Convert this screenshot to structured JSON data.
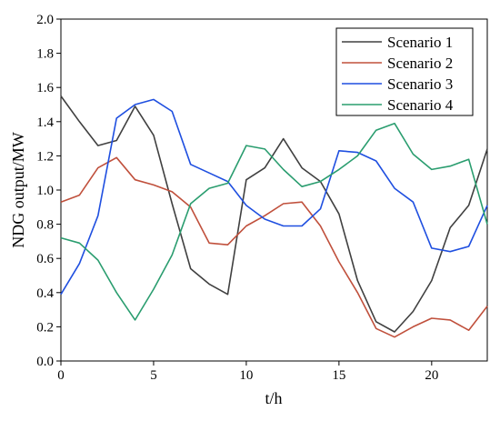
{
  "chart_data": {
    "type": "line",
    "title": "",
    "xlabel": "t/h",
    "ylabel": "NDG output/MW",
    "xlim": [
      0,
      23
    ],
    "ylim": [
      0,
      2.0
    ],
    "xticks": [
      0,
      5,
      10,
      15,
      20
    ],
    "yticks": [
      0,
      0.2,
      0.4,
      0.6,
      0.8,
      1.0,
      1.2,
      1.4,
      1.6,
      1.8,
      2.0
    ],
    "xtick_labels": [
      "0",
      "5",
      "10",
      "15",
      "20"
    ],
    "ytick_labels": [
      "0.0",
      "0.2",
      "0.4",
      "0.6",
      "0.8",
      "1.0",
      "1.2",
      "1.4",
      "1.6",
      "1.8",
      "2.0"
    ],
    "grid": false,
    "legend_position": "top-right",
    "x": [
      0,
      1,
      2,
      3,
      4,
      5,
      6,
      7,
      8,
      9,
      10,
      11,
      12,
      13,
      14,
      15,
      16,
      17,
      18,
      19,
      20,
      21,
      22,
      23
    ],
    "series": [
      {
        "name": "Scenario 1",
        "color": "#404040",
        "values": [
          1.55,
          1.4,
          1.26,
          1.29,
          1.49,
          1.32,
          0.92,
          0.54,
          0.45,
          0.39,
          1.06,
          1.13,
          1.3,
          1.13,
          1.05,
          0.86,
          0.47,
          0.23,
          0.17,
          0.29,
          0.47,
          0.78,
          0.91,
          1.24
        ]
      },
      {
        "name": "Scenario 2",
        "color": "#c0503c",
        "values": [
          0.93,
          0.97,
          1.13,
          1.19,
          1.06,
          1.03,
          0.99,
          0.9,
          0.69,
          0.68,
          0.79,
          0.85,
          0.92,
          0.93,
          0.79,
          0.58,
          0.4,
          0.19,
          0.14,
          0.2,
          0.25,
          0.24,
          0.18,
          0.32
        ]
      },
      {
        "name": "Scenario 3",
        "color": "#1f4fe0",
        "values": [
          0.39,
          0.57,
          0.85,
          1.42,
          1.5,
          1.53,
          1.46,
          1.15,
          1.1,
          1.05,
          0.91,
          0.83,
          0.79,
          0.79,
          0.89,
          1.23,
          1.22,
          1.17,
          1.01,
          0.93,
          0.66,
          0.64,
          0.67,
          0.91
        ]
      },
      {
        "name": "Scenario 4",
        "color": "#2a9d6f",
        "values": [
          0.72,
          0.69,
          0.59,
          0.4,
          0.24,
          0.42,
          0.62,
          0.92,
          1.01,
          1.04,
          1.26,
          1.24,
          1.12,
          1.02,
          1.05,
          1.12,
          1.2,
          1.35,
          1.39,
          1.21,
          1.12,
          1.14,
          1.18,
          0.8
        ]
      }
    ]
  }
}
